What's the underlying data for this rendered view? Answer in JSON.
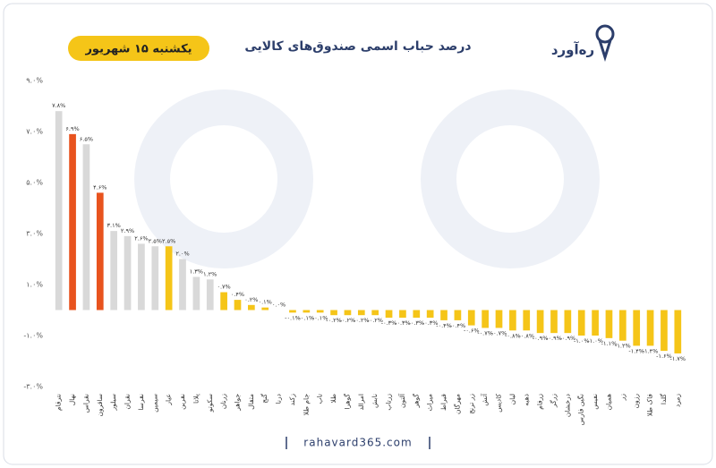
{
  "brand": "ره‌آورد",
  "date": "یکشنبه ۱۵ شهریور",
  "footer": "rahavard365.com",
  "chart_data": {
    "type": "bar",
    "title": "درصد حباب اسمی صندوق‌های کالایی",
    "categories": [
      "نترقام",
      "نهال",
      "نقراس",
      "ساقرون",
      "سیلور",
      "نقران",
      "نقرسا",
      "سیمین",
      "عیار",
      "نقرین",
      "پلاتا",
      "سکوتو",
      "زرنان",
      "جواهر",
      "مثقال",
      "گنج",
      "درنا",
      "زکند",
      "جام طلا",
      "تاب",
      "طلا",
      "گوهرا",
      "امرالد",
      "نابش",
      "زرتاب",
      "آلتون",
      "گوهر",
      "میراث",
      "قیراط",
      "مهرگان",
      "زر ترنج",
      "آتش",
      "کادیس",
      "لیان",
      "ذهبه",
      "زرفام",
      "زرگر",
      "درخشان",
      "نگین فارس",
      "نفیس",
      "همیان",
      "زر",
      "رزون",
      "فاک طلا",
      "گلدا",
      "زمرد"
    ],
    "values": [
      7.8,
      6.9,
      6.5,
      4.6,
      3.1,
      2.9,
      2.6,
      2.5,
      2.5,
      2.0,
      1.3,
      1.2,
      0.7,
      0.4,
      0.2,
      0.1,
      0.0,
      -0.1,
      -0.1,
      -0.1,
      -0.2,
      -0.2,
      -0.2,
      -0.2,
      -0.3,
      -0.3,
      -0.3,
      -0.3,
      -0.4,
      -0.4,
      -0.6,
      -0.7,
      -0.7,
      -0.8,
      -0.8,
      -0.9,
      -0.9,
      -0.9,
      -1.0,
      -1.0,
      -1.1,
      -1.2,
      -1.4,
      -1.4,
      -1.6,
      -1.7
    ],
    "value_labels": [
      "۷.۸%",
      "۶.۹%",
      "۶.۵%",
      "۴.۶%",
      "۳.۱%",
      "۲.۹%",
      "۲.۶%",
      "۲.۵%",
      "۲.۵%",
      "۲.۰%",
      "۱.۳%",
      "۱.۲%",
      "۰.۷%",
      "۰.۴%",
      "۰.۲%",
      "۰.۱%",
      "۰.۰%",
      "-۰.۱%",
      "-۰.۱%",
      "-۰.۱%",
      "-۰.۲%",
      "-۰.۲%",
      "-۰.۲%",
      "-۰.۲%",
      "-۰.۳%",
      "-۰.۳%",
      "-۰.۳%",
      "-۰.۳%",
      "-۰.۴%",
      "-۰.۴%",
      "-۰.۶%",
      "-۰.۷%",
      "-۰.۷%",
      "-۰.۸%",
      "-۰.۸%",
      "-۰.۹%",
      "-۰.۹%",
      "-۰.۹%",
      "-۱.۰%",
      "-۱.۰%",
      "-۱.۱%",
      "-۱.۲%",
      "-۱.۴%",
      "-۱.۴%",
      "-۱.۶%",
      "-۱.۷%"
    ],
    "colors": [
      "#d9d9d9",
      "#e8531e",
      "#d9d9d9",
      "#e8531e",
      "#d9d9d9",
      "#d9d9d9",
      "#d9d9d9",
      "#d9d9d9",
      "#f5c518",
      "#d9d9d9",
      "#d9d9d9",
      "#d9d9d9",
      "#f5c518",
      "#f5c518",
      "#f5c518",
      "#f5c518",
      "#f5c518",
      "#f5c518",
      "#f5c518",
      "#f5c518",
      "#f5c518",
      "#f5c518",
      "#f5c518",
      "#f5c518",
      "#f5c518",
      "#f5c518",
      "#f5c518",
      "#f5c518",
      "#f5c518",
      "#f5c518",
      "#f5c518",
      "#f5c518",
      "#f5c518",
      "#f5c518",
      "#f5c518",
      "#f5c518",
      "#f5c518",
      "#f5c518",
      "#f5c518",
      "#f5c518",
      "#f5c518",
      "#f5c518",
      "#f5c518",
      "#f5c518",
      "#f5c518",
      "#f5c518"
    ],
    "ylim": [
      -3,
      9
    ],
    "yticks": [
      {
        "value": 9,
        "label": "۹.۰%"
      },
      {
        "value": 7,
        "label": "۷.۰%"
      },
      {
        "value": 5,
        "label": "۵.۰%"
      },
      {
        "value": 3,
        "label": "۳.۰%"
      },
      {
        "value": 1,
        "label": "۱.۰%"
      },
      {
        "value": -1,
        "label": "-۱.۰%"
      },
      {
        "value": -3,
        "label": "-۳.۰%"
      }
    ],
    "grid": false
  }
}
